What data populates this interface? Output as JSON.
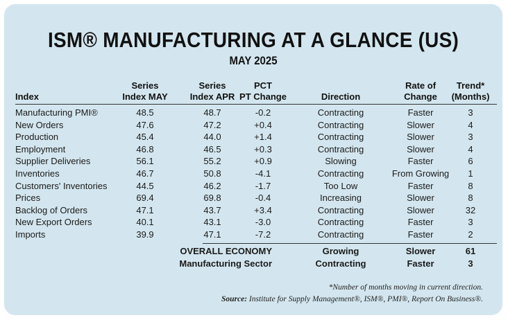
{
  "title": "ISM® MANUFACTURING AT A GLANCE (US)",
  "subtitle": "MAY 2025",
  "headers": {
    "index": "Index",
    "may_l1": "Series",
    "may_l2": "Index MAY",
    "apr_l1": "Series",
    "apr_l2": "Index APR",
    "chg_l1": "PCT",
    "chg_l2": "PT Change",
    "direction": "Direction",
    "rate_l1": "Rate of",
    "rate_l2": "Change",
    "trend_l1": "Trend*",
    "trend_l2": "(Months)"
  },
  "rows": [
    {
      "index": "Manufacturing PMI®",
      "may": "48.5",
      "apr": "48.7",
      "change": "-0.2",
      "direction": "Contracting",
      "rate": "Faster",
      "trend": "3"
    },
    {
      "index": "New Orders",
      "may": "47.6",
      "apr": "47.2",
      "change": "+0.4",
      "direction": "Contracting",
      "rate": "Slower",
      "trend": "4"
    },
    {
      "index": "Production",
      "may": "45.4",
      "apr": "44.0",
      "change": "+1.4",
      "direction": "Contracting",
      "rate": "Slower",
      "trend": "3"
    },
    {
      "index": "Employment",
      "may": "46.8",
      "apr": "46.5",
      "change": "+0.3",
      "direction": "Contracting",
      "rate": "Slower",
      "trend": "4"
    },
    {
      "index": "Supplier Deliveries",
      "may": "56.1",
      "apr": "55.2",
      "change": "+0.9",
      "direction": "Slowing",
      "rate": "Faster",
      "trend": "6"
    },
    {
      "index": "Inventories",
      "may": "46.7",
      "apr": "50.8",
      "change": "-4.1",
      "direction": "Contracting",
      "rate": "From Growing",
      "trend": "1"
    },
    {
      "index": "Customers' Inventories",
      "may": "44.5",
      "apr": "46.2",
      "change": "-1.7",
      "direction": "Too Low",
      "rate": "Faster",
      "trend": "8"
    },
    {
      "index": "Prices",
      "may": "69.4",
      "apr": "69.8",
      "change": "-0.4",
      "direction": "Increasing",
      "rate": "Slower",
      "trend": "8"
    },
    {
      "index": "Backlog of Orders",
      "may": "47.1",
      "apr": "43.7",
      "change": "+3.4",
      "direction": "Contracting",
      "rate": "Slower",
      "trend": "32"
    },
    {
      "index": "New Export Orders",
      "may": "40.1",
      "apr": "43.1",
      "change": "-3.0",
      "direction": "Contracting",
      "rate": "Faster",
      "trend": "3"
    },
    {
      "index": "Imports",
      "may": "39.9",
      "apr": "47.1",
      "change": "-7.2",
      "direction": "Contracting",
      "rate": "Faster",
      "trend": "2"
    }
  ],
  "summary": [
    {
      "label": "OVERALL ECONOMY",
      "direction": "Growing",
      "rate": "Slower",
      "trend": "61"
    },
    {
      "label": "Manufacturing Sector",
      "direction": "Contracting",
      "rate": "Faster",
      "trend": "3"
    }
  ],
  "footnote": "*Number of months moving in current direction.",
  "source": {
    "label": "Source:",
    "text": " Institute for Supply Management®, ISM®, PMI®, Report On Business®."
  },
  "colors": {
    "card_background": "#d3e6ef",
    "rule": "#333333"
  }
}
